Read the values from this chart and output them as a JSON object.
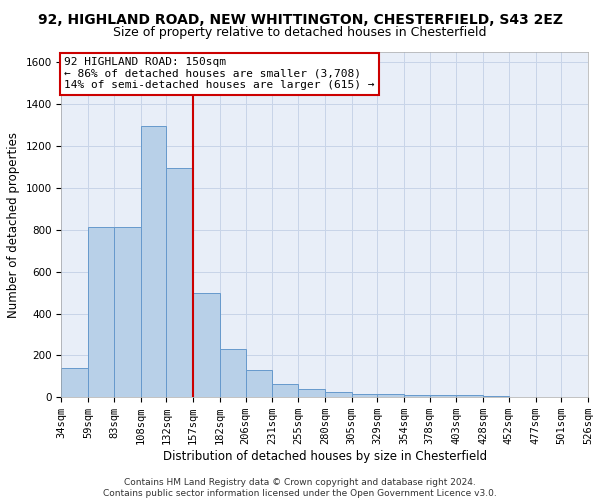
{
  "title_line1": "92, HIGHLAND ROAD, NEW WHITTINGTON, CHESTERFIELD, S43 2EZ",
  "title_line2": "Size of property relative to detached houses in Chesterfield",
  "xlabel": "Distribution of detached houses by size in Chesterfield",
  "ylabel": "Number of detached properties",
  "bar_values": [
    140,
    815,
    815,
    1295,
    1095,
    500,
    230,
    130,
    65,
    40,
    27,
    15,
    15,
    10,
    10,
    10,
    5,
    3,
    3,
    3
  ],
  "bin_edges": [
    34,
    59,
    83,
    108,
    132,
    157,
    182,
    206,
    231,
    255,
    280,
    305,
    329,
    354,
    378,
    403,
    428,
    452,
    477,
    501,
    526
  ],
  "bar_color": "#b8d0e8",
  "bar_edgecolor": "#6699cc",
  "property_line_x": 157,
  "annotation_text": "92 HIGHLAND ROAD: 150sqm\n← 86% of detached houses are smaller (3,708)\n14% of semi-detached houses are larger (615) →",
  "annotation_box_color": "white",
  "annotation_box_edgecolor": "#cc0000",
  "vline_color": "#cc0000",
  "ylim": [
    0,
    1650
  ],
  "yticks": [
    0,
    200,
    400,
    600,
    800,
    1000,
    1200,
    1400,
    1600
  ],
  "tick_labels": [
    "34sqm",
    "59sqm",
    "83sqm",
    "108sqm",
    "132sqm",
    "157sqm",
    "182sqm",
    "206sqm",
    "231sqm",
    "255sqm",
    "280sqm",
    "305sqm",
    "329sqm",
    "354sqm",
    "378sqm",
    "403sqm",
    "428sqm",
    "452sqm",
    "477sqm",
    "501sqm",
    "526sqm"
  ],
  "grid_color": "#c8d4e8",
  "bg_color": "#e8eef8",
  "footer_line1": "Contains HM Land Registry data © Crown copyright and database right 2024.",
  "footer_line2": "Contains public sector information licensed under the Open Government Licence v3.0.",
  "title_fontsize": 10,
  "subtitle_fontsize": 9,
  "axis_label_fontsize": 8.5,
  "tick_fontsize": 7.5,
  "annotation_fontsize": 8,
  "footer_fontsize": 6.5
}
